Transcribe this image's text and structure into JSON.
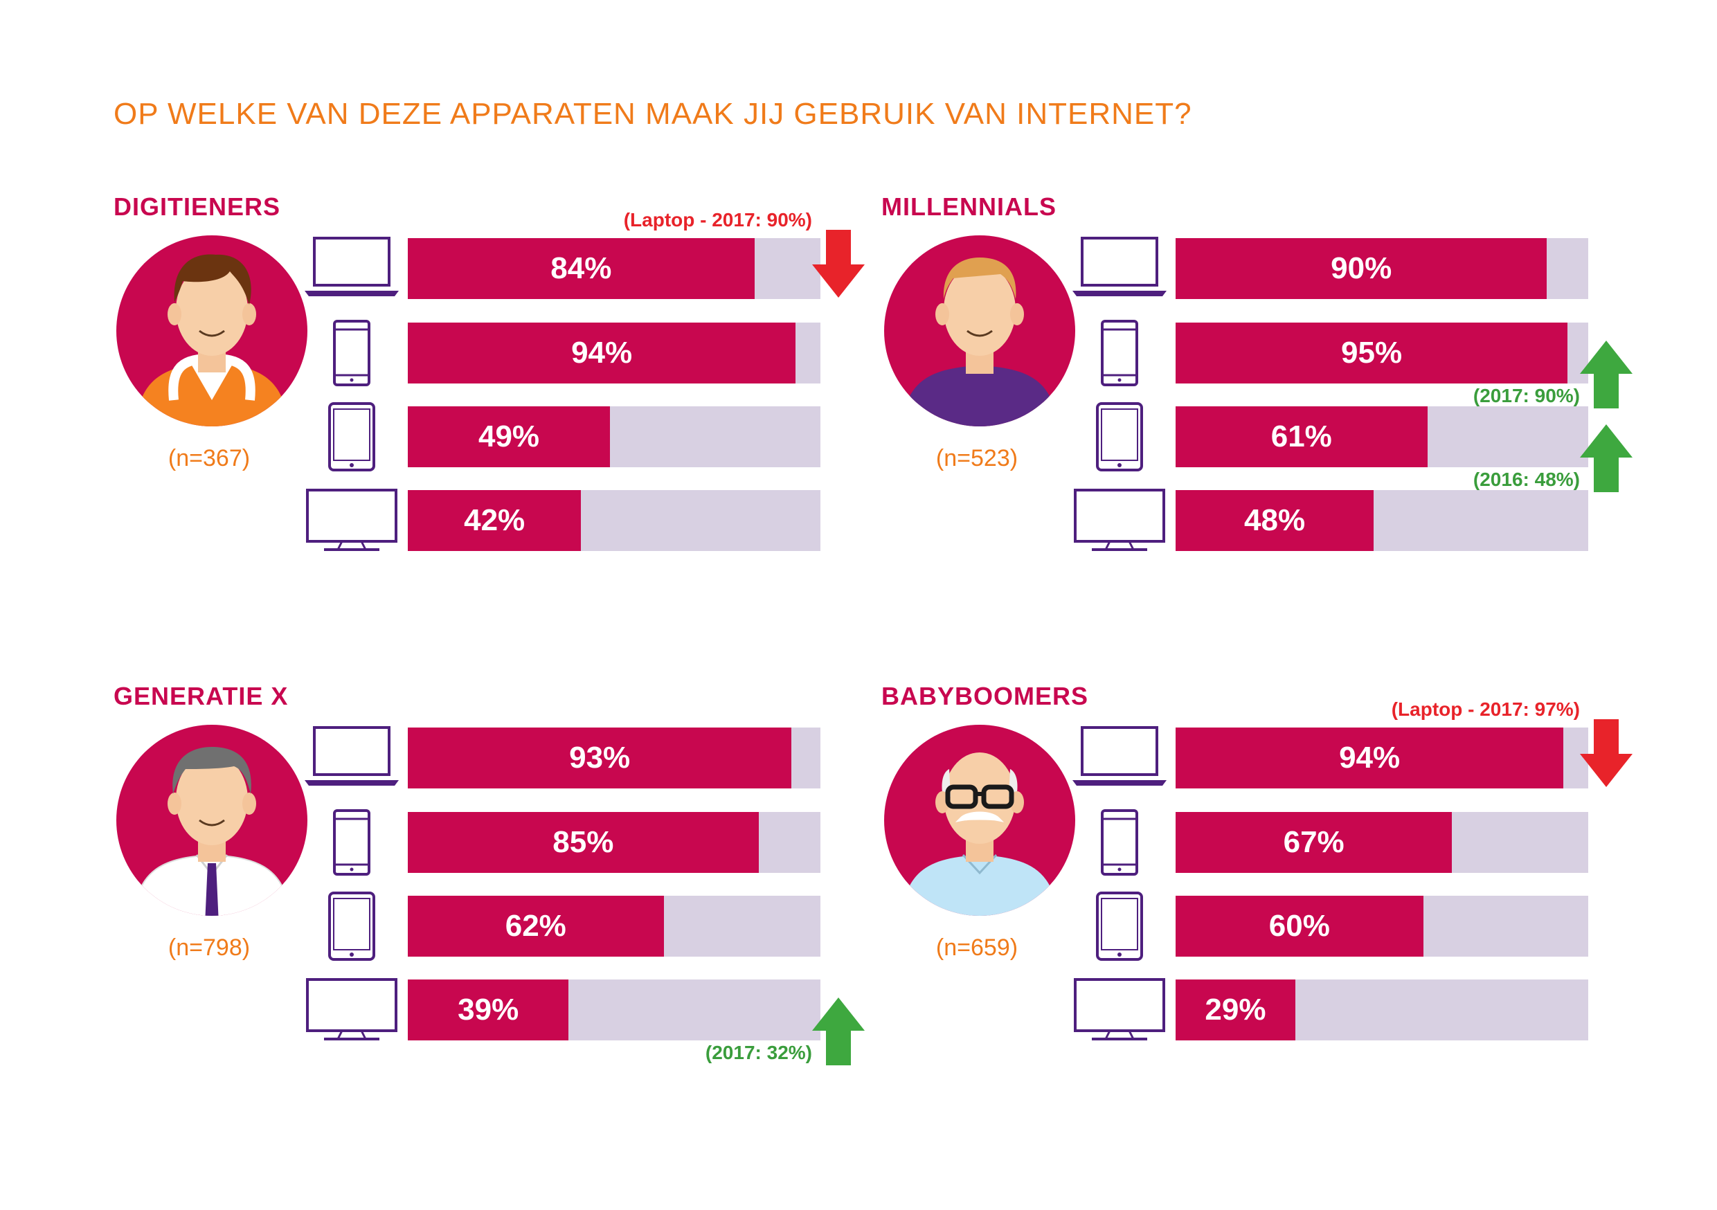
{
  "title": "OP WELKE VAN DEZE APPARATEN MAAK JIJ GEBRUIK VAN INTERNET?",
  "colors": {
    "accent": "#c8074f",
    "track": "#d8d0e2",
    "title": "#f07b1a",
    "device": "#4e1f7e",
    "up": "#3ea83f",
    "down": "#e8232a"
  },
  "devices": [
    "laptop-icon",
    "smartphone-icon",
    "tablet-icon",
    "tv-icon"
  ],
  "chart_data": {
    "type": "bar",
    "orientation": "horizontal",
    "title": "OP WELKE VAN DEZE APPARATEN MAAK JIJ GEBRUIK VAN INTERNET?",
    "categories": [
      "Laptop",
      "Smartphone",
      "Tablet",
      "Smart TV"
    ],
    "unit": "%",
    "xlim": [
      0,
      100
    ],
    "panels": [
      {
        "group": "DIGITIENERS",
        "sample": "(n=367)",
        "avatar": "teen-avatar",
        "values": [
          84,
          94,
          49,
          42
        ],
        "labels": [
          "84%",
          "94%",
          "49%",
          "42%"
        ],
        "annotations": [
          {
            "row": 0,
            "text": "(Laptop - 2017: 90%)",
            "direction": "down",
            "note_position": "above"
          }
        ]
      },
      {
        "group": "MILLENNIALS",
        "sample": "(n=523)",
        "avatar": "millennial-avatar",
        "values": [
          90,
          95,
          61,
          48
        ],
        "labels": [
          "90%",
          "95%",
          "61%",
          "48%"
        ],
        "annotations": [
          {
            "row": 1,
            "text": "(2017: 90%)",
            "direction": "up",
            "note_position": "below"
          },
          {
            "row": 2,
            "text": "(2016: 48%)",
            "direction": "up",
            "note_position": "below"
          }
        ]
      },
      {
        "group": "GENERATIE X",
        "sample": "(n=798)",
        "avatar": "genx-avatar",
        "values": [
          93,
          85,
          62,
          39
        ],
        "labels": [
          "93%",
          "85%",
          "62%",
          "39%"
        ],
        "annotations": [
          {
            "row": 3,
            "text": "(2017: 32%)",
            "direction": "up",
            "note_position": "below"
          }
        ]
      },
      {
        "group": "BABYBOOMERS",
        "sample": "(n=659)",
        "avatar": "boomer-avatar",
        "values": [
          94,
          67,
          60,
          29
        ],
        "labels": [
          "94%",
          "67%",
          "60%",
          "29%"
        ],
        "annotations": [
          {
            "row": 0,
            "text": "(Laptop - 2017: 97%)",
            "direction": "down",
            "note_position": "above"
          }
        ]
      }
    ]
  }
}
